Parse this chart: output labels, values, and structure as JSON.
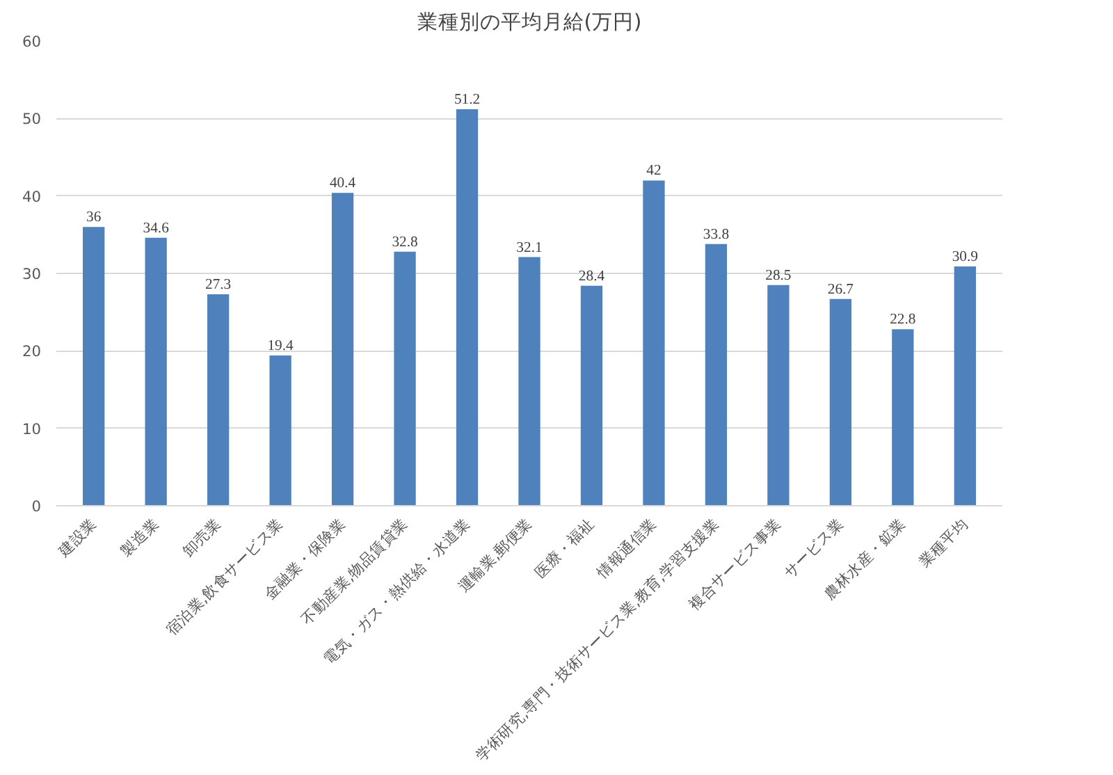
{
  "chart_data": {
    "type": "bar",
    "title": "業種別の平均月給(万円)",
    "categories": [
      "建設業",
      "製造業",
      "卸売業",
      "宿泊業,飲食サービス業",
      "金融業・保険業",
      "不動産業,物品賃貸業",
      "電気・ガス・熱供給・水道業",
      "運輸業,郵便業",
      "医療・福祉",
      "情報通信業",
      "学術研究,専門・技術サービス業,教育,学習支援業",
      "複合サービス事業",
      "サービス業",
      "農林水産・鉱業",
      "業種平均"
    ],
    "values": [
      36,
      34.6,
      27.3,
      19.4,
      40.4,
      32.8,
      51.2,
      32.1,
      28.4,
      42,
      33.8,
      28.5,
      26.7,
      22.8,
      30.9
    ],
    "color": "#4f81bd",
    "ylim": [
      0,
      60
    ],
    "yticks": [
      0,
      10,
      20,
      30,
      40,
      50,
      60
    ],
    "grid": "y",
    "data_labels": true
  }
}
